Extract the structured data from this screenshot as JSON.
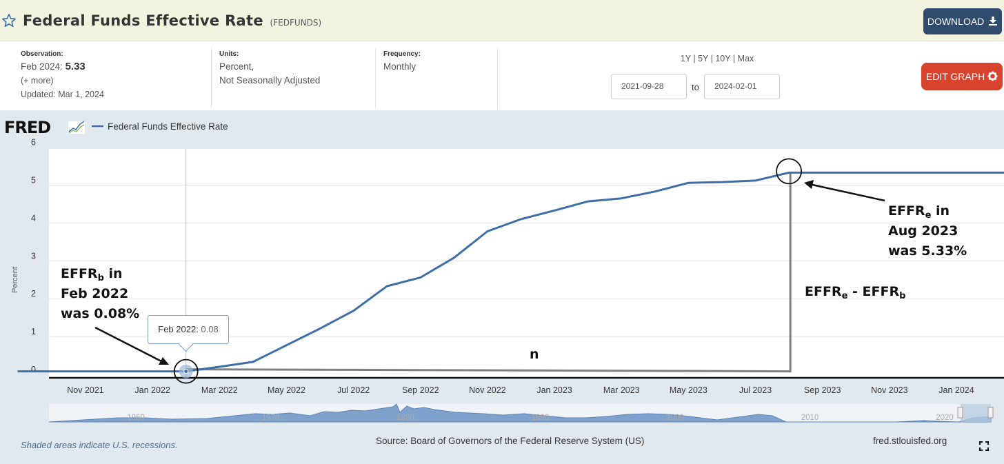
{
  "header": {
    "title": "Federal Funds Effective Rate",
    "series_id": "(FEDFUNDS)",
    "download_label": "DOWNLOAD"
  },
  "meta": {
    "observation_label": "Observation:",
    "observation_date": "Feb 2024:",
    "observation_value": "5.33",
    "more_link": "(+ more)",
    "updated": "Updated: Mar 1, 2024",
    "units_label": "Units:",
    "units_line1": "Percent,",
    "units_line2": "Not Seasonally Adjusted",
    "frequency_label": "Frequency:",
    "frequency_value": "Monthly",
    "ranges": [
      "1Y",
      "5Y",
      "10Y",
      "Max"
    ],
    "start_date": "2021-09-28",
    "to_label": "to",
    "end_date": "2024-02-01",
    "edit_label": "EDIT GRAPH"
  },
  "footer": {
    "recession_note": "Shaded areas indicate U.S. recessions.",
    "source": "Source: Board of Governors of the Federal Reserve System (US)",
    "site": "fred.stlouisfed.org"
  },
  "tooltip": {
    "label": "Feb 2022:",
    "value": "0.08"
  },
  "annotations": {
    "start_line1_prefix": "EFFR",
    "start_line1_sub": "b",
    "start_line1_suffix": " in",
    "start_line2": "Feb 2022",
    "start_line3": "was 0.08%",
    "end_line1_prefix": "EFFR",
    "end_line1_sub": "e",
    "end_line1_suffix": " in",
    "end_line2": "Aug 2023",
    "end_line3": "was 5.33%",
    "diff_a": "EFFR",
    "diff_a_sub": "e",
    "diff_mid": " - EFFR",
    "diff_b_sub": "b",
    "n_label": "n"
  },
  "colors": {
    "line": "#3e6ea8",
    "download": "#2f4c6e",
    "edit": "#d8432e",
    "title_bar": "#f3f4e0",
    "chart_bg": "#e1e9f0"
  },
  "chart_data": {
    "type": "line",
    "brand": "FRED",
    "title": "",
    "legend": [
      "Federal Funds Effective Rate"
    ],
    "ylabel": "Percent",
    "ylim": [
      0,
      6
    ],
    "yticks": [
      0,
      1,
      2,
      3,
      4,
      5,
      6
    ],
    "xlim": [
      "2021-09",
      "2024-02"
    ],
    "xticks": [
      "Nov 2021",
      "Jan 2022",
      "Mar 2022",
      "May 2022",
      "Jul 2022",
      "Sep 2022",
      "Nov 2022",
      "Jan 2023",
      "Mar 2023",
      "May 2023",
      "Jul 2023",
      "Sep 2023",
      "Nov 2023",
      "Jan 2024"
    ],
    "grid": true,
    "series": [
      {
        "name": "Federal Funds Effective Rate",
        "x": [
          "2021-09",
          "2021-10",
          "2021-11",
          "2021-12",
          "2022-01",
          "2022-02",
          "2022-03",
          "2022-04",
          "2022-05",
          "2022-06",
          "2022-07",
          "2022-08",
          "2022-09",
          "2022-10",
          "2022-11",
          "2022-12",
          "2023-01",
          "2023-02",
          "2023-03",
          "2023-04",
          "2023-05",
          "2023-06",
          "2023-07",
          "2023-08",
          "2023-09",
          "2023-10",
          "2023-11",
          "2023-12",
          "2024-01",
          "2024-02"
        ],
        "values": [
          0.08,
          0.08,
          0.08,
          0.08,
          0.08,
          0.08,
          0.2,
          0.33,
          0.77,
          1.21,
          1.68,
          2.33,
          2.56,
          3.08,
          3.78,
          4.1,
          4.33,
          4.57,
          4.65,
          4.83,
          5.06,
          5.08,
          5.12,
          5.33,
          5.33,
          5.33,
          5.33,
          5.33,
          5.33,
          5.33
        ]
      }
    ],
    "navigator_ticks": [
      "1960",
      "1970",
      "1980",
      "1990",
      "2000",
      "2010",
      "2020"
    ]
  }
}
